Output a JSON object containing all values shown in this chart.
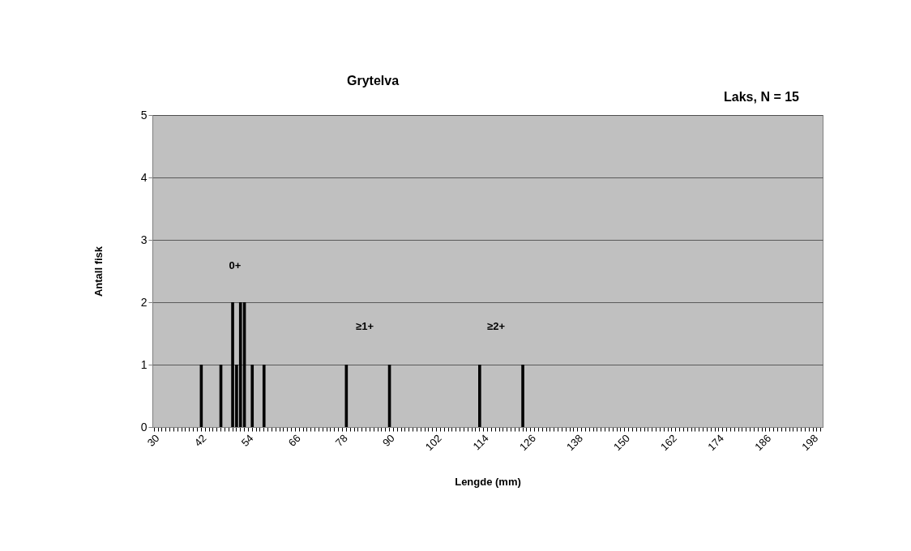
{
  "chart_data": {
    "type": "bar",
    "title": "Grytelva",
    "subtitle": "Laks, N = 15",
    "xlabel": "Lengde (mm)",
    "ylabel": "Antall fisk",
    "categories": [
      "30",
      null,
      null,
      null,
      null,
      null,
      null,
      null,
      null,
      null,
      null,
      null,
      "42",
      null,
      null,
      null,
      null,
      null,
      null,
      null,
      null,
      null,
      null,
      null,
      "54",
      null,
      null,
      null,
      null,
      null,
      null,
      null,
      null,
      null,
      null,
      null,
      "66",
      null,
      null,
      null,
      null,
      null,
      null,
      null,
      null,
      null,
      null,
      null,
      "78",
      null,
      null,
      null,
      null,
      null,
      null,
      null,
      null,
      null,
      null,
      null,
      "90",
      null,
      null,
      null,
      null,
      null,
      null,
      null,
      null,
      null,
      null,
      null,
      "102",
      null,
      null,
      null,
      null,
      null,
      null,
      null,
      null,
      null,
      null,
      null,
      "114",
      null,
      null,
      null,
      null,
      null,
      null,
      null,
      null,
      null,
      null,
      null,
      "126",
      null,
      null,
      null,
      null,
      null,
      null,
      null,
      null,
      null,
      null,
      null,
      "138",
      null,
      null,
      null,
      null,
      null,
      null,
      null,
      null,
      null,
      null,
      null,
      "150",
      null,
      null,
      null,
      null,
      null,
      null,
      null,
      null,
      null,
      null,
      null,
      "162",
      null,
      null,
      null,
      null,
      null,
      null,
      null,
      null,
      null,
      null,
      null,
      "174",
      null,
      null,
      null,
      null,
      null,
      null,
      null,
      null,
      null,
      null,
      null,
      "186",
      null,
      null,
      null,
      null,
      null,
      null,
      null,
      null,
      null,
      null,
      null,
      "198",
      null,
      null
    ],
    "values": [
      0,
      0,
      0,
      0,
      0,
      0,
      0,
      0,
      0,
      0,
      0,
      0,
      1,
      0,
      0,
      0,
      0,
      1,
      0,
      0,
      2,
      1,
      2,
      2,
      0,
      1,
      0,
      0,
      1,
      0,
      0,
      0,
      0,
      0,
      0,
      0,
      0,
      0,
      0,
      0,
      0,
      0,
      0,
      0,
      0,
      0,
      0,
      0,
      0,
      1,
      0,
      0,
      0,
      0,
      0,
      0,
      0,
      0,
      0,
      0,
      1,
      0,
      0,
      0,
      0,
      0,
      0,
      0,
      0,
      0,
      0,
      0,
      0,
      0,
      0,
      0,
      0,
      0,
      0,
      0,
      0,
      0,
      0,
      1,
      0,
      0,
      0,
      0,
      0,
      0,
      0,
      0,
      0,
      0,
      1,
      0,
      0,
      0,
      0,
      0,
      0,
      0,
      0,
      0,
      0,
      0,
      0,
      0,
      0,
      0,
      0,
      0,
      0,
      0,
      0,
      0,
      0,
      0,
      0,
      0,
      0,
      0,
      0,
      0,
      0,
      0,
      0,
      0,
      0,
      0,
      0,
      0,
      0,
      0,
      0,
      0,
      0,
      0,
      0,
      0,
      0,
      0,
      0,
      0,
      0,
      0,
      0,
      0,
      0,
      0,
      0,
      0,
      0,
      0,
      0,
      0,
      0,
      0,
      0,
      0,
      0,
      0,
      0,
      0,
      0,
      0,
      0,
      0,
      0,
      0,
      0
    ],
    "color": "#000000",
    "ylim": [
      0,
      5
    ],
    "yticks": [
      0,
      1,
      2,
      3,
      4,
      5
    ],
    "grid": "y",
    "annotations": [
      "0+",
      "≥1+",
      "≥2+"
    ]
  }
}
